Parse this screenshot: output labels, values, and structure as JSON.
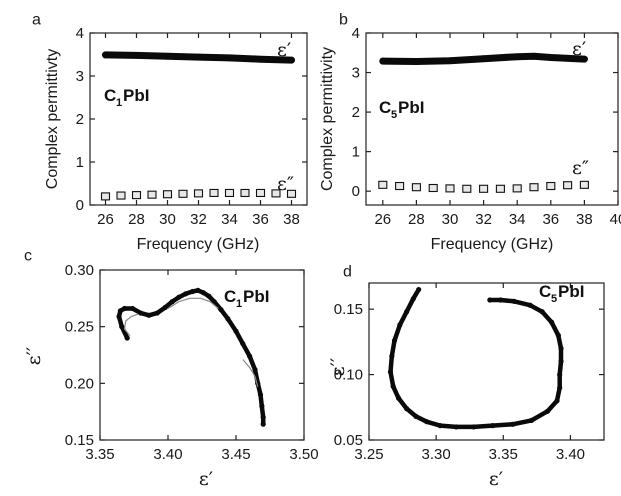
{
  "chart_data": [
    {
      "panel": "a",
      "type": "scatter",
      "xlabel": "Frequency (GHz)",
      "ylabel": "Complex permittivty",
      "xlim": [
        25,
        39
      ],
      "ylim": [
        0,
        4
      ],
      "xticks": [
        26,
        28,
        30,
        32,
        34,
        36,
        38
      ],
      "yticks": [
        0,
        1,
        2,
        3,
        4
      ],
      "material": "C",
      "material_sub": "1",
      "material_tail": "PbI",
      "series": [
        {
          "name": "ε′",
          "style": "filled",
          "x": [
            26,
            28,
            30,
            32,
            34,
            36,
            38
          ],
          "y": [
            3.49,
            3.48,
            3.46,
            3.44,
            3.42,
            3.39,
            3.37
          ]
        },
        {
          "name": "ε″",
          "style": "hollow",
          "x": [
            26,
            27,
            28,
            29,
            30,
            31,
            32,
            33,
            34,
            35,
            36,
            37,
            38
          ],
          "y": [
            0.2,
            0.22,
            0.23,
            0.24,
            0.25,
            0.26,
            0.27,
            0.28,
            0.28,
            0.28,
            0.28,
            0.27,
            0.26
          ]
        }
      ]
    },
    {
      "panel": "b",
      "type": "scatter",
      "xlabel": "Frequency (GHz)",
      "ylabel": "Complex permittivity",
      "xlim": [
        25,
        40
      ],
      "ylim": [
        -0.35,
        4
      ],
      "xticks": [
        26,
        28,
        30,
        32,
        34,
        36,
        38,
        40
      ],
      "yticks": [
        0,
        1,
        2,
        3,
        4
      ],
      "material": "C",
      "material_sub": "5",
      "material_tail": "PbI",
      "series": [
        {
          "name": "ε′",
          "style": "filled",
          "x": [
            26,
            28,
            30,
            32,
            34,
            35,
            36,
            38
          ],
          "y": [
            3.29,
            3.28,
            3.3,
            3.35,
            3.4,
            3.41,
            3.38,
            3.34
          ]
        },
        {
          "name": "ε″",
          "style": "hollow",
          "x": [
            26,
            27,
            28,
            29,
            30,
            31,
            32,
            33,
            34,
            35,
            36,
            37,
            38
          ],
          "y": [
            0.16,
            0.13,
            0.1,
            0.08,
            0.07,
            0.06,
            0.06,
            0.06,
            0.07,
            0.1,
            0.13,
            0.15,
            0.16
          ]
        }
      ]
    },
    {
      "panel": "c",
      "type": "scatter",
      "xlabel": "ε′",
      "ylabel": "ε′′",
      "xlim": [
        3.35,
        3.5
      ],
      "ylim": [
        0.15,
        0.3
      ],
      "xticks": [
        "3.35",
        "3.40",
        "3.45",
        "3.50"
      ],
      "yticks": [
        "0.15",
        "0.20",
        "0.25",
        "0.30"
      ],
      "material": "C",
      "material_sub": "1",
      "material_tail": "PbI",
      "series": [
        {
          "name": "",
          "style": "filled",
          "x": [
            3.37,
            3.366,
            3.364,
            3.365,
            3.368,
            3.374,
            3.38,
            3.386,
            3.392,
            3.398,
            3.403,
            3.408,
            3.413,
            3.418,
            3.422,
            3.426,
            3.43,
            3.434,
            3.439,
            3.444,
            3.45,
            3.455,
            3.46,
            3.464,
            3.466,
            3.468,
            3.469,
            3.47,
            3.47
          ],
          "y": [
            0.24,
            0.25,
            0.259,
            0.264,
            0.266,
            0.266,
            0.262,
            0.26,
            0.262,
            0.267,
            0.272,
            0.276,
            0.279,
            0.281,
            0.282,
            0.28,
            0.277,
            0.272,
            0.265,
            0.257,
            0.246,
            0.235,
            0.224,
            0.212,
            0.2,
            0.19,
            0.18,
            0.17,
            0.164
          ]
        },
        {
          "name": "",
          "style": "fit",
          "x": [
            3.372,
            3.368,
            3.369,
            3.373,
            3.378
          ],
          "y": [
            0.242,
            0.248,
            0.255,
            0.259,
            0.261
          ]
        },
        {
          "name": "",
          "style": "fit",
          "x": [
            3.4,
            3.408,
            3.416,
            3.424,
            3.431,
            3.437
          ],
          "y": [
            0.266,
            0.272,
            0.275,
            0.275,
            0.272,
            0.266
          ]
        },
        {
          "name": "",
          "style": "fit",
          "x": [
            3.455,
            3.46,
            3.464,
            3.466
          ],
          "y": [
            0.221,
            0.214,
            0.206,
            0.197
          ]
        }
      ]
    },
    {
      "panel": "d",
      "type": "scatter",
      "xlabel": "ε′",
      "ylabel": "ε′′",
      "xlim": [
        3.25,
        3.425
      ],
      "ylim": [
        0.05,
        0.17
      ],
      "xticks": [
        "3.25",
        "3.30",
        "3.35",
        "3.40"
      ],
      "yticks": [
        "0.05",
        "0.10",
        "0.15"
      ],
      "material": "C",
      "material_sub": "5",
      "material_tail": "PbI",
      "series": [
        {
          "name": "",
          "style": "filled",
          "x": [
            3.287,
            3.283,
            3.278,
            3.273,
            3.269,
            3.267,
            3.266,
            3.268,
            3.272,
            3.278,
            3.285,
            3.293,
            3.303,
            3.315,
            3.328,
            3.342,
            3.357,
            3.371,
            3.383,
            3.39,
            3.392,
            3.392,
            3.393,
            3.393,
            3.391,
            3.386,
            3.379,
            3.37,
            3.358,
            3.348,
            3.34
          ],
          "y": [
            0.165,
            0.158,
            0.148,
            0.138,
            0.126,
            0.114,
            0.102,
            0.091,
            0.082,
            0.074,
            0.068,
            0.064,
            0.061,
            0.06,
            0.06,
            0.061,
            0.062,
            0.065,
            0.072,
            0.08,
            0.09,
            0.1,
            0.11,
            0.12,
            0.13,
            0.14,
            0.148,
            0.153,
            0.156,
            0.157,
            0.157
          ]
        }
      ]
    }
  ]
}
